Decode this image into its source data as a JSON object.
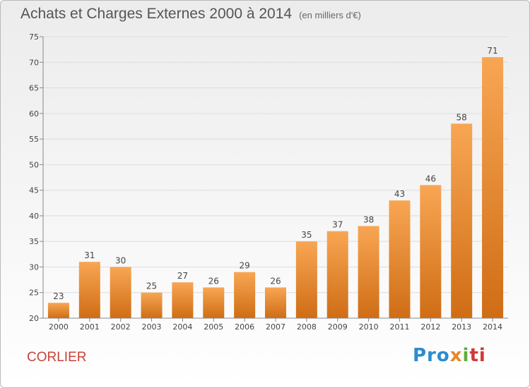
{
  "title": "Achats et Charges Externes 2000 à 2014",
  "subtitle": "(en milliers d'€)",
  "location": "CORLIER",
  "logo": {
    "parts": [
      "Pro",
      "x",
      "i",
      "ti"
    ]
  },
  "colors": {
    "bar_light": "#f8a654",
    "bar_dark": "#cf6d15",
    "city": "#c8433a"
  },
  "chart_data": {
    "type": "bar",
    "categories": [
      "2000",
      "2001",
      "2002",
      "2003",
      "2004",
      "2005",
      "2006",
      "2007",
      "2008",
      "2009",
      "2010",
      "2011",
      "2012",
      "2013",
      "2014"
    ],
    "values": [
      23,
      31,
      30,
      25,
      27,
      26,
      29,
      26,
      35,
      37,
      38,
      43,
      46,
      58,
      71
    ],
    "title": "Achats et Charges Externes 2000 à 2014",
    "xlabel": "",
    "ylabel": "",
    "ylim": [
      20,
      75
    ],
    "yticks": [
      20,
      25,
      30,
      35,
      40,
      45,
      50,
      55,
      60,
      65,
      70,
      75
    ],
    "grid": true,
    "legend": "none"
  }
}
